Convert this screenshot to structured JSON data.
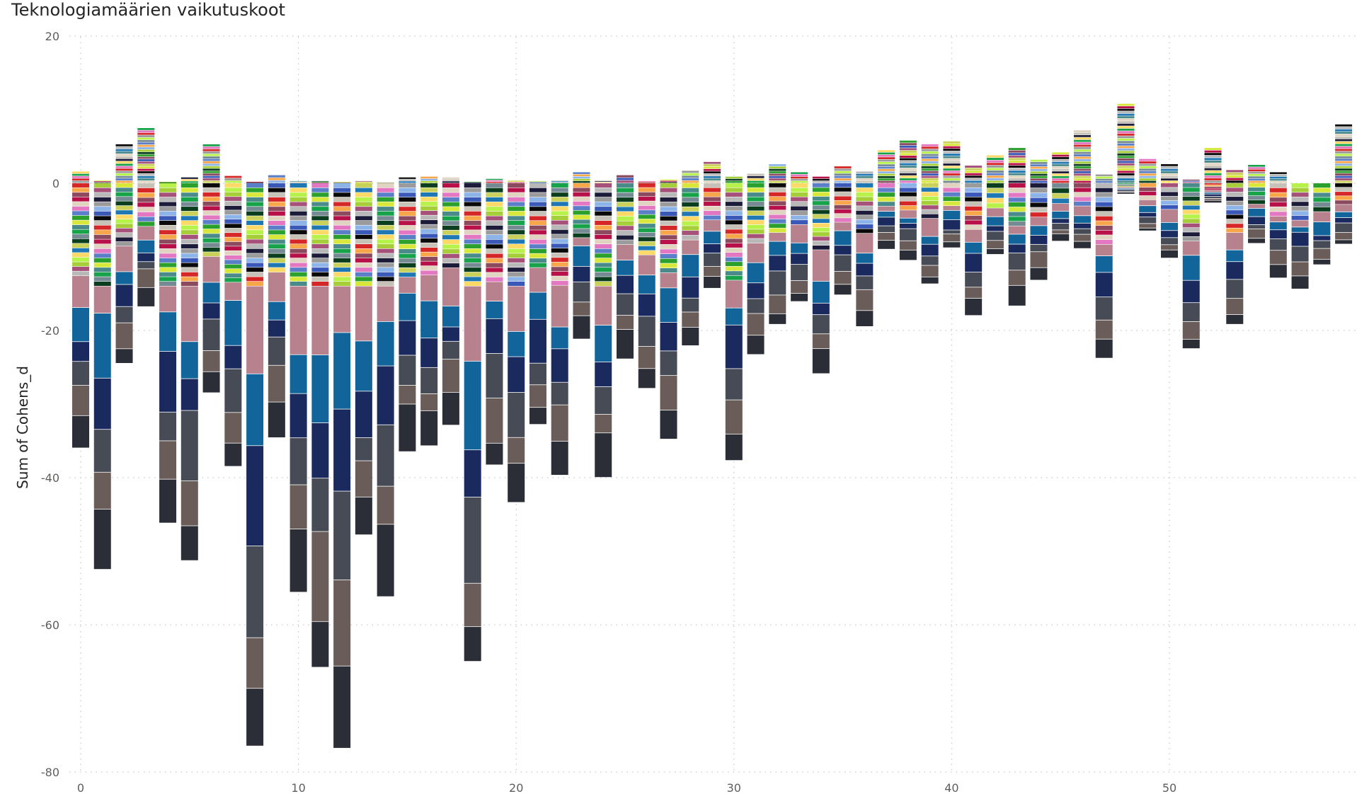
{
  "chart_data": {
    "type": "bar",
    "stacked": true,
    "title": "Teknologiamäärien vaikutuskoot",
    "xlabel": "",
    "ylabel": "Sum of Cohens_d",
    "ylim": [
      -80,
      20
    ],
    "xlim": [
      -1,
      58
    ],
    "y_ticks": [
      20,
      0,
      -20,
      -40,
      -60,
      -80
    ],
    "x_ticks": [
      0,
      10,
      20,
      30,
      40,
      50
    ],
    "grid": "dotted",
    "legend": "none",
    "note_on_values": "Totals per bar are the readable tops (positive sum) and bottoms (negative sum) of each stack; individual segments are estimated.",
    "x": [
      0,
      1,
      2,
      3,
      4,
      5,
      6,
      7,
      8,
      9,
      10,
      11,
      12,
      13,
      14,
      15,
      16,
      17,
      18,
      19,
      20,
      21,
      22,
      23,
      24,
      25,
      26,
      27,
      28,
      29,
      30,
      31,
      32,
      33,
      34,
      35,
      36,
      37,
      38,
      39,
      40,
      41,
      42,
      43,
      44,
      45,
      46,
      47,
      48,
      49,
      50,
      51,
      52,
      53,
      54,
      55,
      56,
      57,
      58
    ],
    "positive_total": [
      1.6,
      0.4,
      5.3,
      7.5,
      0.2,
      0.8,
      5.3,
      1.0,
      0.2,
      1.1,
      0.3,
      0.3,
      0.2,
      0.3,
      0.1,
      0.8,
      0.9,
      0.8,
      0.2,
      0.6,
      0.4,
      0.3,
      0.4,
      1.5,
      0.4,
      1.1,
      0.3,
      0.5,
      1.7,
      2.9,
      0.9,
      1.3,
      2.6,
      1.5,
      0.9,
      2.3,
      1.6,
      4.5,
      5.8,
      5.3,
      5.7,
      2.4,
      3.8,
      4.8,
      3.2,
      4.2,
      7.2,
      1.2,
      10.8,
      3.3,
      2.6,
      0.5,
      4.8,
      1.8,
      2.5,
      1.5,
      0.0,
      0.0,
      8.0
    ],
    "negative_total": [
      -36,
      -52.5,
      -24.5,
      -16.8,
      -46.2,
      -51.3,
      -28.5,
      -38.5,
      -76.5,
      -34.6,
      -55.6,
      -65.8,
      -76.8,
      -47.8,
      -56.2,
      -36.5,
      -35.7,
      -32.9,
      -65,
      -38.3,
      -43.4,
      -32.8,
      -39.7,
      -21.2,
      -40,
      -23.9,
      -27.9,
      -34.8,
      -22.1,
      -14.3,
      -37.7,
      -23.3,
      -19.2,
      -16.1,
      -25.9,
      -15.2,
      -19.5,
      -9.0,
      -10.5,
      -13.7,
      -8.8,
      -18,
      -9.7,
      -16.7,
      -13.2,
      -7.9,
      -8.9,
      -23.8,
      -1.5,
      -6.5,
      -10.2,
      -22.5,
      -2.7,
      -19.2,
      -8.2,
      -12.9,
      -14.4,
      -11.1,
      -8.3
    ],
    "series": [
      {
        "name": "",
        "color": "#9b9b9b"
      },
      {
        "name": "",
        "color": "#1f77b4"
      },
      {
        "name": "",
        "color": "#2ca02c"
      },
      {
        "name": "",
        "color": "#d62728"
      },
      {
        "name": "",
        "color": "#b8b8b8"
      },
      {
        "name": "",
        "color": "#0b3d1f"
      },
      {
        "name": "",
        "color": "#e377c2"
      },
      {
        "name": "",
        "color": "#0a0a0a"
      },
      {
        "name": "",
        "color": "#a6ce39"
      },
      {
        "name": "",
        "color": "#17a34a"
      },
      {
        "name": "",
        "color": "#b8114a"
      },
      {
        "name": "",
        "color": "#8cb4e8"
      },
      {
        "name": "",
        "color": "#ffd966"
      },
      {
        "name": "",
        "color": "#d8e83a"
      },
      {
        "name": "",
        "color": "#f7a64a"
      },
      {
        "name": "",
        "color": "#1c1c3a"
      },
      {
        "name": "",
        "color": "#c9d15a"
      },
      {
        "name": "",
        "color": "#5a7ec8"
      },
      {
        "name": "",
        "color": "#c6c2b8"
      },
      {
        "name": "",
        "color": "#a6517a"
      },
      {
        "name": "",
        "color": "#768a93"
      },
      {
        "name": "",
        "color": "#e0d4c0"
      },
      {
        "name": "",
        "color": "#3a58b8"
      },
      {
        "name": "",
        "color": "#b6f24a"
      },
      {
        "name": "",
        "color": "#4a8a8a"
      },
      {
        "name": "",
        "color": "#8c4a5e"
      },
      {
        "name": "",
        "color": "#12659a"
      },
      {
        "name": "",
        "color": "#b8818e"
      },
      {
        "name": "",
        "color": "#1a2a5e"
      },
      {
        "name": "",
        "color": "#474b55"
      },
      {
        "name": "",
        "color": "#6a5c58"
      },
      {
        "name": "",
        "color": "#2b2e36"
      }
    ],
    "bottom_segment_colors": [
      "#b8818e",
      "#12659a",
      "#1a2a5e",
      "#474b55",
      "#6a5c58",
      "#2b2e36"
    ]
  }
}
